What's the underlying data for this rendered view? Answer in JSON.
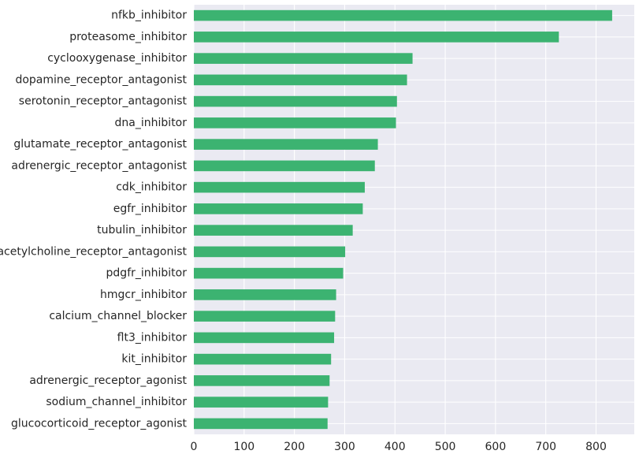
{
  "chart_data": {
    "type": "bar",
    "orientation": "horizontal",
    "title": "",
    "xlabel": "",
    "ylabel": "",
    "categories": [
      "nfkb_inhibitor",
      "proteasome_inhibitor",
      "cyclooxygenase_inhibitor",
      "dopamine_receptor_antagonist",
      "serotonin_receptor_antagonist",
      "dna_inhibitor",
      "glutamate_receptor_antagonist",
      "adrenergic_receptor_antagonist",
      "cdk_inhibitor",
      "egfr_inhibitor",
      "tubulin_inhibitor",
      "acetylcholine_receptor_antagonist",
      "pdgfr_inhibitor",
      "hmgcr_inhibitor",
      "calcium_channel_blocker",
      "flt3_inhibitor",
      "kit_inhibitor",
      "adrenergic_receptor_agonist",
      "sodium_channel_inhibitor",
      "glucocorticoid_receptor_agonist"
    ],
    "values": [
      832,
      726,
      435,
      424,
      404,
      402,
      366,
      360,
      340,
      336,
      316,
      301,
      297,
      283,
      281,
      279,
      273,
      270,
      267,
      266
    ],
    "xlim": [
      0,
      876
    ],
    "xticks": [
      0,
      100,
      200,
      300,
      400,
      500,
      600,
      700,
      800
    ],
    "xtick_labels": [
      "0",
      "100",
      "200",
      "300",
      "400",
      "500",
      "600",
      "700",
      "800"
    ],
    "grid": true,
    "legend": "none",
    "colors": {
      "bar": "#3cb371",
      "background": "#eaeaf2",
      "grid": "#ffffff",
      "text": "#262626"
    }
  }
}
